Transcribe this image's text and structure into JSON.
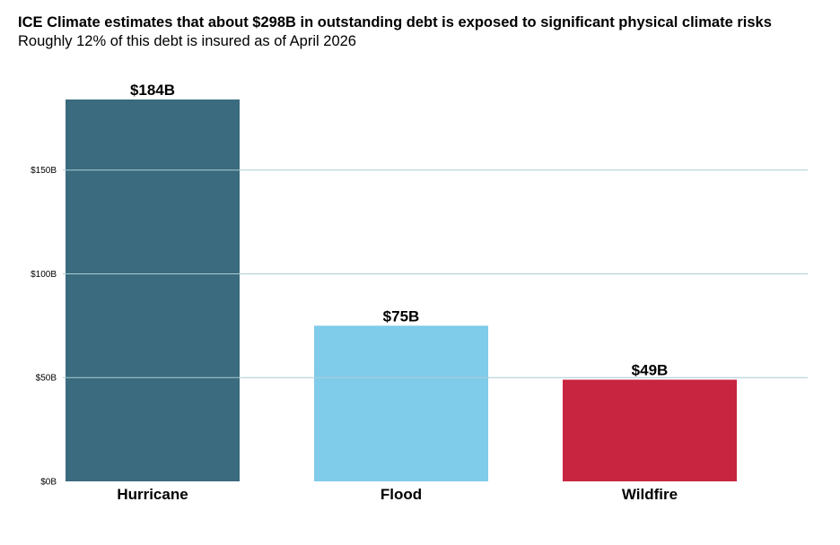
{
  "chart_data": {
    "type": "bar",
    "title": "ICE Climate estimates that about $298B in outstanding debt is exposed to significant physical climate risks",
    "subtitle": "Roughly 12% of this debt is insured as of April 2026",
    "categories": [
      "Hurricane",
      "Flood",
      "Wildfire"
    ],
    "values": [
      184,
      75,
      49
    ],
    "data_labels": [
      "$184B",
      "$75B",
      "$49B"
    ],
    "colors": [
      "#3a6b7e",
      "#7fcbea",
      "#c82540"
    ],
    "ylim": [
      0,
      184
    ],
    "yticks": [
      0,
      50,
      100,
      150
    ],
    "ytick_labels": [
      "$0B",
      "$50B",
      "$100B",
      "$150B"
    ],
    "gridlines": true,
    "gridline_color": "#a9ccd6",
    "legend": "none"
  }
}
